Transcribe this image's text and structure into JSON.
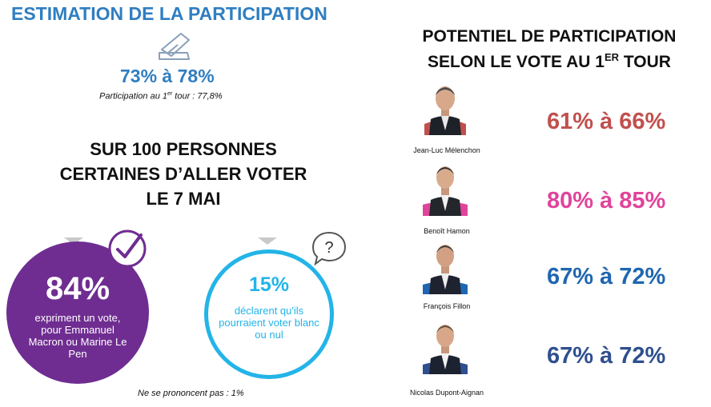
{
  "left": {
    "title": "ESTIMATION DE LA PARTICIPATION",
    "participation_range": "73% à 78%",
    "first_round_prefix": "Participation au 1",
    "first_round_sup": "er",
    "first_round_suffix": " tour : 77,8%",
    "subheading_lines": [
      "SUR 100 PERSONNES",
      "CERTAINES D’ALLER VOTER",
      "LE 7 MAI"
    ],
    "stat_vote": {
      "percent": "84%",
      "text": "expriment un vote, pour Emmanuel Macron ou Marine Le Pen",
      "color": "#6f2d91"
    },
    "stat_blank": {
      "percent": "15%",
      "text": "déclarent qu'ils pourraient voter blanc ou nul",
      "color": "#23b4e8"
    },
    "no_answer": "Ne se prononcent pas : 1%"
  },
  "right": {
    "title_line1": "POTENTIEL DE PARTICIPATION",
    "title_line2_prefix": "SELON LE VOTE AU 1",
    "title_line2_sup": "ER",
    "title_line2_suffix": " TOUR",
    "candidates": [
      {
        "name": "Jean-Luc Mélenchon",
        "range": "61% à 66%",
        "color": "#c0504d"
      },
      {
        "name": "Benoît Hamon",
        "range": "80% à 85%",
        "color": "#e0449a"
      },
      {
        "name": "François Fillon",
        "range": "67% à 72%",
        "color": "#1f66b0"
      },
      {
        "name": "Nicolas Dupont-Aignan",
        "range": "67% à 72%",
        "color": "#2f4f8f"
      }
    ]
  },
  "colors": {
    "title_blue": "#2f7ec1",
    "purple": "#6f2d91",
    "cyan": "#23b4e8"
  }
}
